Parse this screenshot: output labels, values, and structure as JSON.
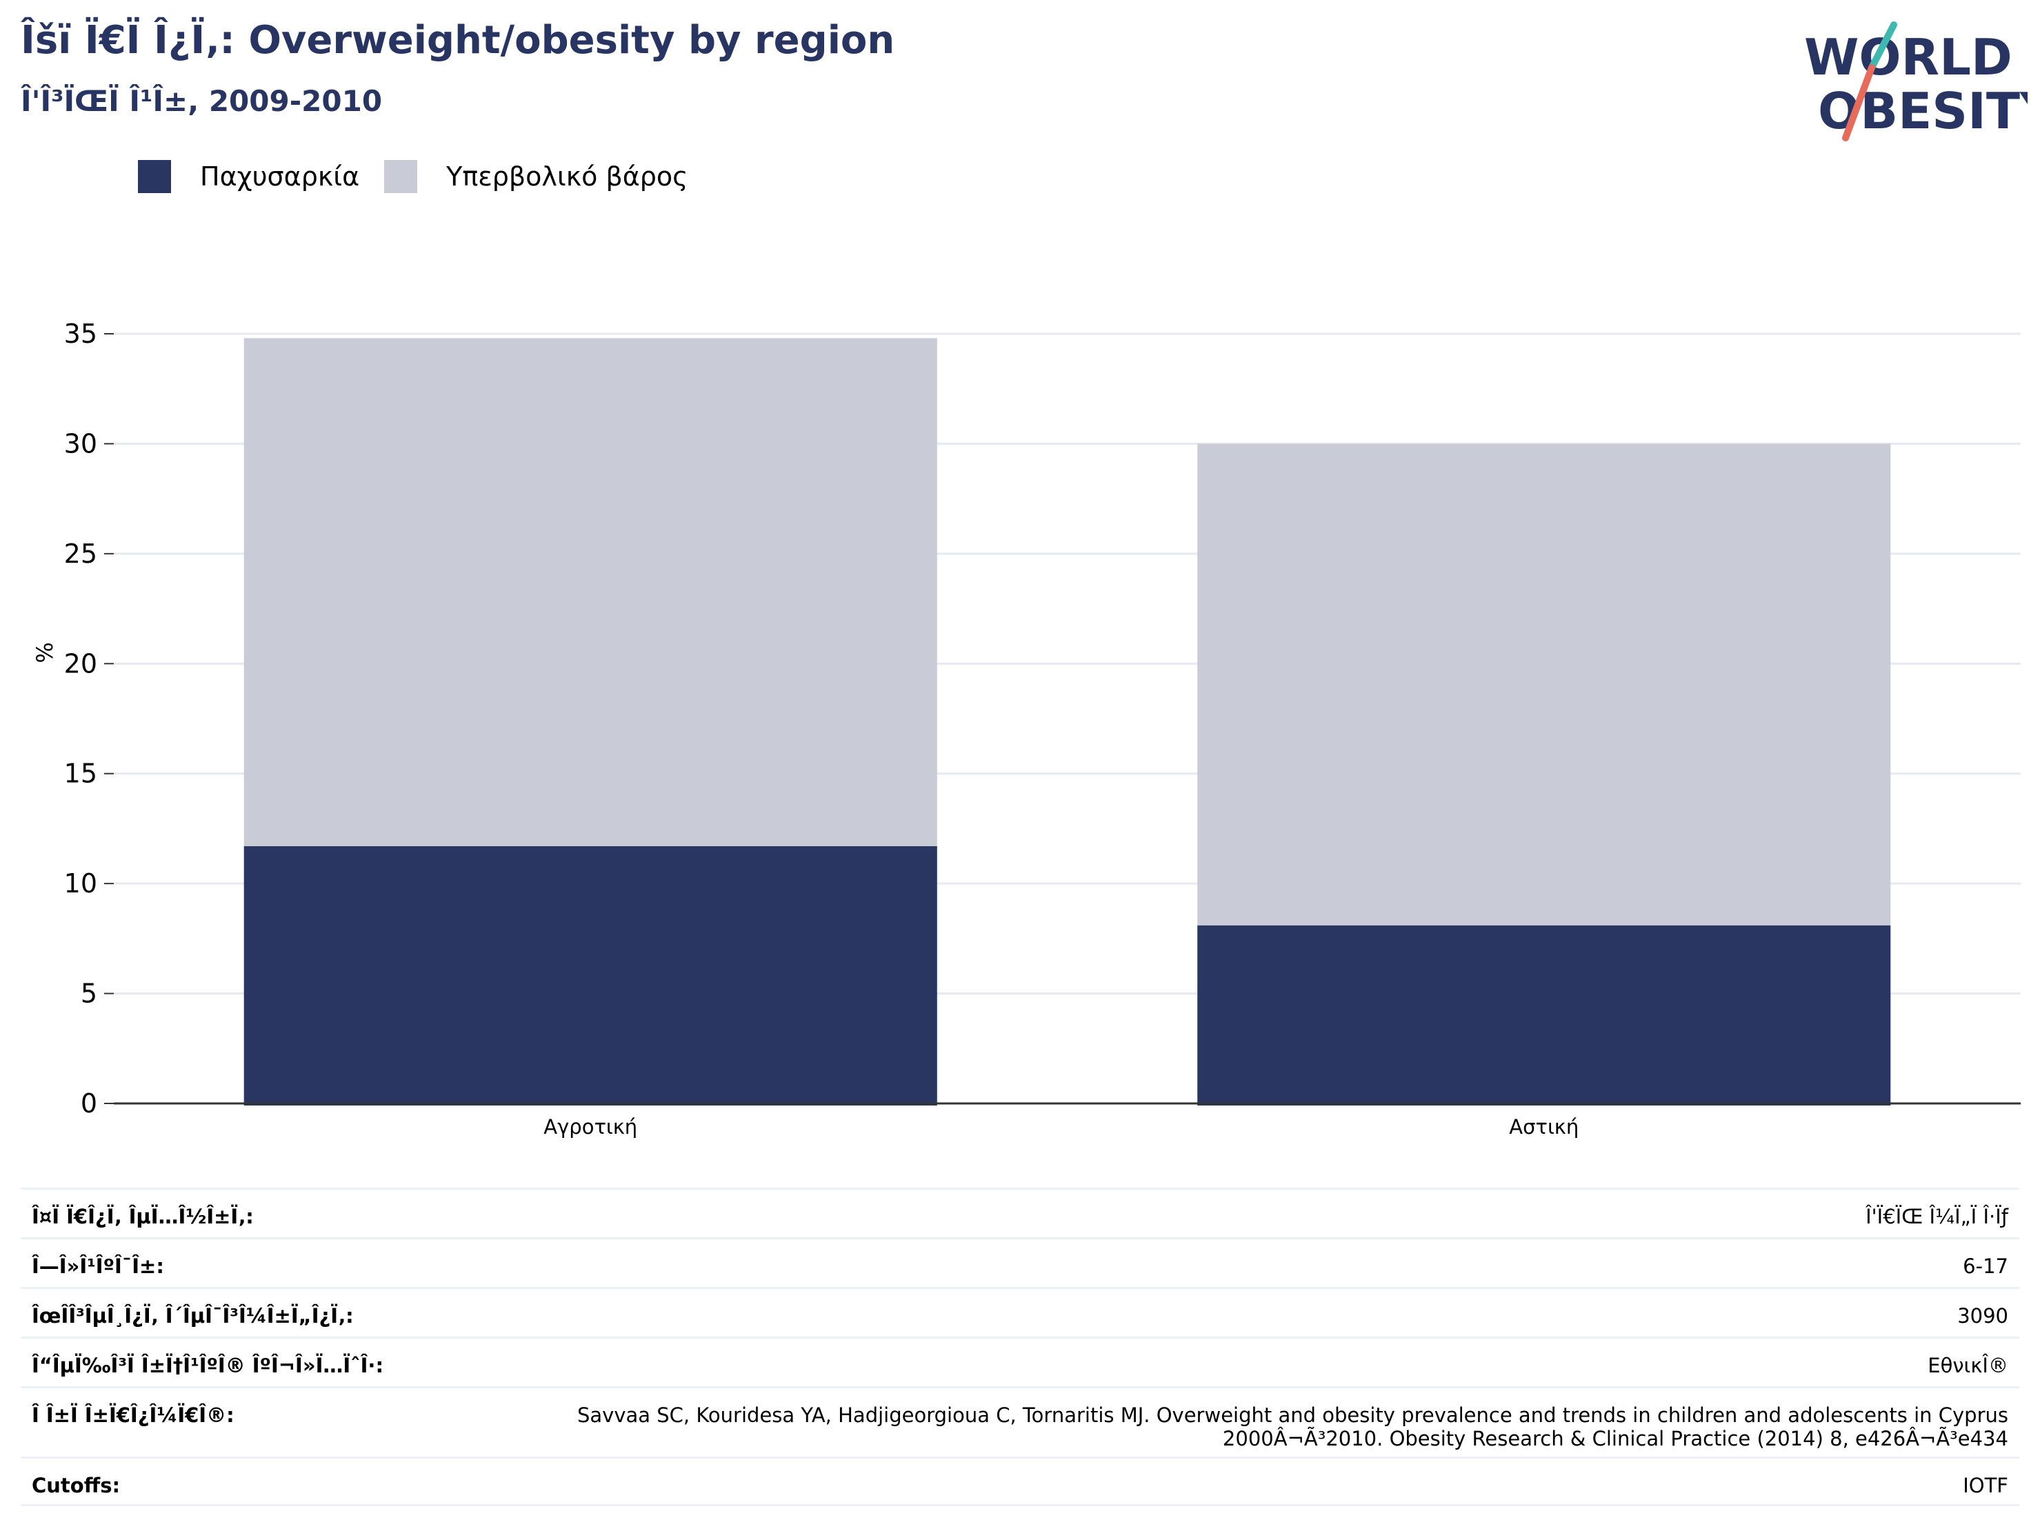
{
  "header": {
    "title": "Îšï Ï€Ï Î¿Ï‚: Overweight/obesity by region",
    "subtitle": "Î'Î³ÏŒÏ Î¹Î±, 2009-2010"
  },
  "logo": {
    "line1": "WORLD",
    "line2": "OBESITY",
    "colors": {
      "text": "#283562",
      "slash_top": "#3fb8af",
      "slash_bottom": "#e86a5a"
    }
  },
  "legend": {
    "items": [
      {
        "label": "Παχυσαρκία",
        "color": "#2a3662"
      },
      {
        "label": "Υπερβολικό βάρος",
        "color": "#c9cbd7"
      }
    ]
  },
  "chart_data": {
    "type": "bar",
    "stacked": true,
    "categories": [
      "Αγροτική",
      "Αστική"
    ],
    "series": [
      {
        "name": "Παχυσαρκία",
        "values": [
          11.7,
          8.1
        ],
        "color": "#2a3662"
      },
      {
        "name": "Υπερβολικό βάρος",
        "values": [
          23.1,
          21.9
        ],
        "color": "#c9cbd7"
      }
    ],
    "ylabel": "%",
    "ylim": [
      0,
      35
    ],
    "yticks": [
      0,
      5,
      10,
      15,
      20,
      25,
      30,
      35
    ],
    "grid": true,
    "legend_position": "top-left"
  },
  "info_table": {
    "rows": [
      {
        "label": "Î¤Ï Ï€Î¿Ï‚ ÎµÏ…Î½Î±Ï‚:",
        "value": "Î'Ï€ÏŒ Î¼Ï„Ï Î·Ïƒ"
      },
      {
        "label": "Î—Î»Î¹ÎºÎ¯Î±:",
        "value": "6-17"
      },
      {
        "label": "ÎœÎ­Î³ÎµÎ¸Î¿Ï‚ Î´ÎµÎ¯Î³Î¼Î±Ï„Î¿Ï‚:",
        "value": "3090"
      },
      {
        "label": "Î“ÎµÏ‰Î³Ï Î±Ï†Î¹ÎºÎ® ÎºÎ¬Î»Ï…ÏˆÎ·:",
        "value": "ΕθνικÎ®"
      },
      {
        "label": "Î Î±Ï Î±Ï€Î¿Î¼Ï€Î®:",
        "value": "Savvaa SC, Kouridesa YA, Hadjigeorgioua C, Tornaritis MJ. Overweight and obesity prevalence and trends in children and adolescents in Cyprus 2000Â¬Ã³2010. Obesity Research & Clinical Practice (2014) 8, e426Â¬Ã³e434"
      },
      {
        "label": "Cutoffs:",
        "value": "IOTF"
      }
    ]
  }
}
